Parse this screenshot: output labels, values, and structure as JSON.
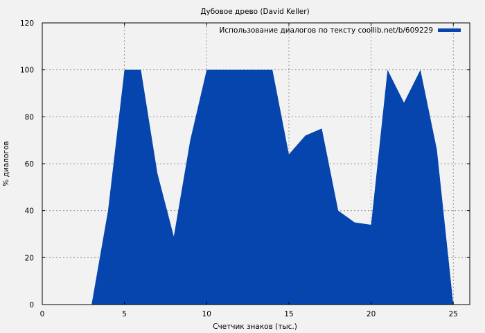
{
  "chart_data": {
    "type": "area",
    "title": "Дубовое древо (David Keller)",
    "xlabel": "Счетчик знаков (тыс.)",
    "ylabel": "% диалогов",
    "xlim": [
      0,
      26
    ],
    "ylim": [
      0,
      120
    ],
    "xticks": [
      0,
      5,
      10,
      15,
      20,
      25
    ],
    "yticks": [
      0,
      20,
      40,
      60,
      80,
      100,
      120
    ],
    "grid": true,
    "legend_position": "top-right",
    "series": [
      {
        "name": "Использование диалогов по тексту coollib.net/b/609229",
        "color": "#0645ad",
        "x": [
          3,
          4,
          5,
          6,
          7,
          8,
          9,
          10,
          11,
          12,
          13,
          14,
          15,
          16,
          17,
          18,
          19,
          20,
          21,
          22,
          23,
          24,
          25
        ],
        "y": [
          0,
          40,
          100,
          100,
          56,
          29,
          70,
          100,
          100,
          100,
          100,
          100,
          64,
          72,
          75,
          40,
          35,
          34,
          100,
          86,
          100,
          66,
          0
        ]
      }
    ]
  }
}
